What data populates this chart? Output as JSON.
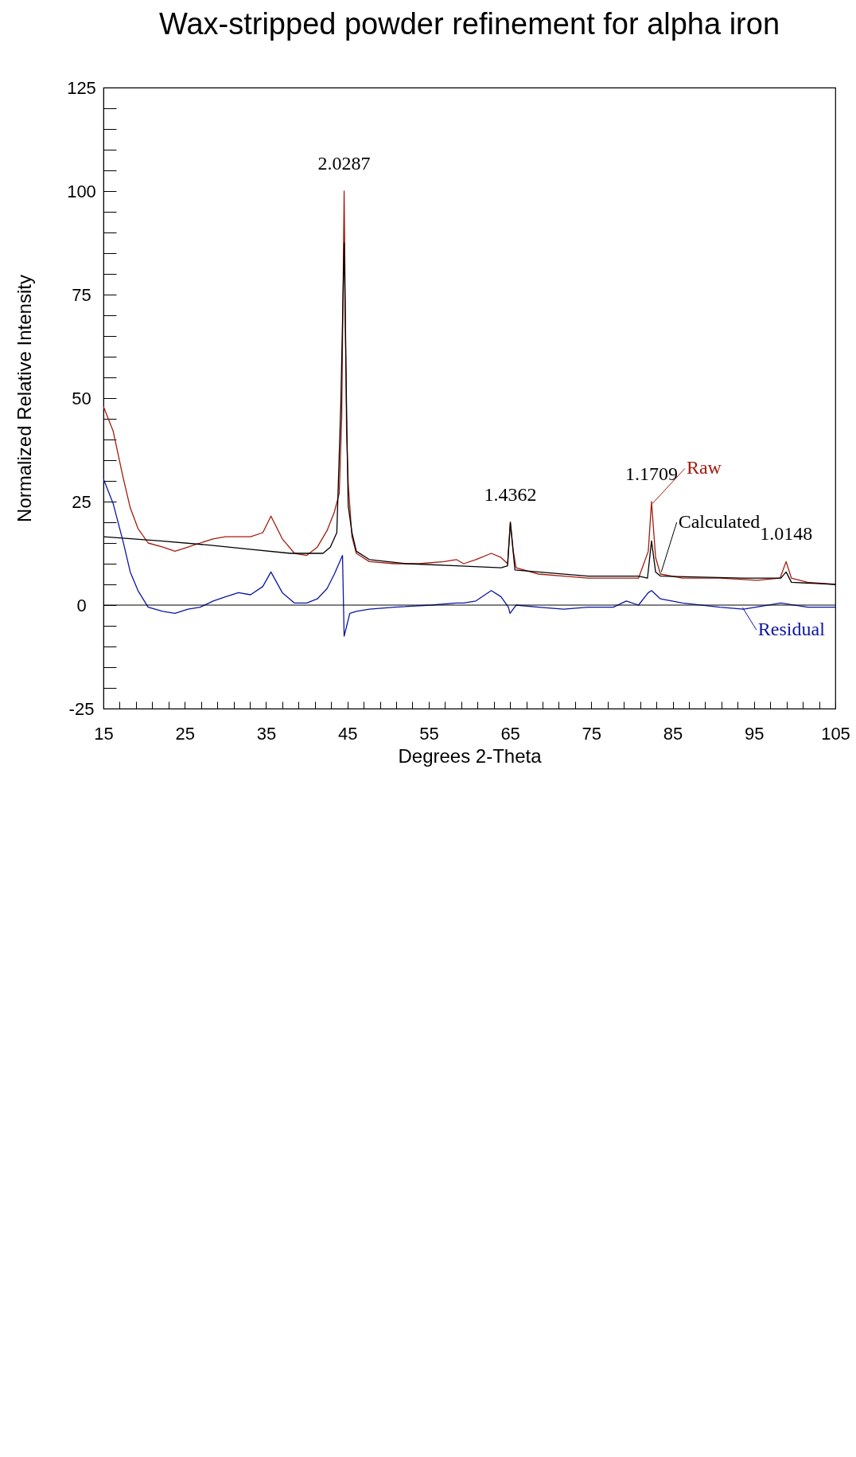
{
  "chart_data": {
    "type": "line",
    "title": "Wax-stripped powder refinement for alpha iron",
    "xlabel": "Degrees 2-Theta",
    "ylabel": "Normalized Relative Intensity",
    "xlim": [
      15,
      105
    ],
    "ylim": [
      -25,
      125
    ],
    "xticks": [
      15,
      {
        "value": 17,
        "label": null
      },
      {
        "value": 19,
        "label": null
      },
      {
        "value": 21,
        "label": null
      },
      {
        "value": 23,
        "label": null
      },
      25,
      {
        "value": 27,
        "label": null
      },
      {
        "value": 29,
        "label": null
      },
      {
        "value": 31,
        "label": null
      },
      {
        "value": 33,
        "label": null
      },
      35,
      {
        "value": 37,
        "label": null
      },
      {
        "value": 39,
        "label": null
      },
      {
        "value": 41,
        "label": null
      },
      {
        "value": 43,
        "label": null
      },
      45,
      {
        "value": 47,
        "label": null
      },
      {
        "value": 49,
        "label": null
      },
      {
        "value": 51,
        "label": null
      },
      {
        "value": 53,
        "label": null
      },
      55,
      {
        "value": 57,
        "label": null
      },
      {
        "value": 59,
        "label": null
      },
      {
        "value": 61,
        "label": null
      },
      {
        "value": 63,
        "label": null
      },
      65,
      {
        "value": 67,
        "label": null
      },
      {
        "value": 69,
        "label": null
      },
      {
        "value": 71,
        "label": null
      },
      {
        "value": 73,
        "label": null
      },
      75,
      {
        "value": 77,
        "label": null
      },
      {
        "value": 79,
        "label": null
      },
      {
        "value": 81,
        "label": null
      },
      {
        "value": 83,
        "label": null
      },
      85,
      {
        "value": 87,
        "label": null
      },
      {
        "value": 89,
        "label": null
      },
      {
        "value": 91,
        "label": null
      },
      {
        "value": 93,
        "label": null
      },
      95,
      {
        "value": 97,
        "label": null
      },
      {
        "value": 99,
        "label": null
      },
      {
        "value": 101,
        "label": null
      },
      {
        "value": 103,
        "label": null
      },
      105
    ],
    "yticks": [
      -25,
      {
        "value": -20,
        "label": null
      },
      {
        "value": -15,
        "label": null
      },
      {
        "value": -10,
        "label": null
      },
      {
        "value": -5,
        "label": null
      },
      0,
      {
        "value": 5,
        "label": null
      },
      {
        "value": 10,
        "label": null
      },
      {
        "value": 15,
        "label": null
      },
      {
        "value": 20,
        "label": null
      },
      25,
      {
        "value": 30,
        "label": null
      },
      {
        "value": 35,
        "label": null
      },
      {
        "value": 40,
        "label": null
      },
      {
        "value": 45,
        "label": null
      },
      50,
      {
        "value": 55,
        "label": null
      },
      {
        "value": 60,
        "label": null
      },
      {
        "value": 65,
        "label": null
      },
      {
        "value": 70,
        "label": null
      },
      75,
      {
        "value": 80,
        "label": null
      },
      {
        "value": 85,
        "label": null
      },
      {
        "value": 90,
        "label": null
      },
      {
        "value": 95,
        "label": null
      },
      100,
      {
        "value": 105,
        "label": null
      },
      {
        "value": 110,
        "label": null
      },
      {
        "value": 115,
        "label": null
      },
      {
        "value": 120,
        "label": null
      },
      125
    ],
    "series": [
      {
        "name": "Raw",
        "color": "#a31c0f",
        "x": [
          15,
          16.2,
          17.4,
          18.3,
          19.25,
          20.5,
          22.3,
          23.8,
          25.4,
          26.9,
          28.5,
          30,
          31.6,
          33.1,
          34.6,
          35.6,
          37,
          38.5,
          40,
          41.3,
          42.5,
          43.4,
          44,
          44.3,
          44.6,
          44.9,
          45.1,
          45.56,
          46.1,
          47.7,
          50.8,
          53.8,
          56.9,
          58.4,
          59.3,
          60.8,
          62.7,
          63.9,
          64.7,
          65.04,
          65.4,
          65.75,
          68.5,
          71.6,
          74.6,
          77.7,
          80.8,
          82,
          82.4,
          82.9,
          83.5,
          86.2,
          90.8,
          95.4,
          98.2,
          98.95,
          99.6,
          101.6,
          105
        ],
        "values": [
          48,
          42,
          31,
          23.5,
          18.5,
          15,
          14,
          13,
          14,
          15,
          16,
          16.5,
          16.5,
          16.5,
          17.5,
          21.5,
          16,
          12.5,
          12,
          14,
          18,
          22.5,
          27,
          45,
          100,
          42,
          29.5,
          16.5,
          12.5,
          10.5,
          10,
          10,
          10.5,
          11,
          10,
          11,
          12.5,
          11.5,
          10,
          20,
          13,
          9,
          7.5,
          7,
          6.5,
          6.5,
          6.5,
          13,
          25,
          11.5,
          7.5,
          6.5,
          6.5,
          6,
          6.5,
          10.5,
          6.5,
          5.5,
          5
        ]
      },
      {
        "name": "Calculated",
        "color": "#000000",
        "x": [
          15,
          22,
          28,
          33,
          38,
          42,
          42.9,
          43.7,
          44.2,
          44.6,
          44.94,
          45.1,
          45.56,
          46.1,
          47.7,
          52.3,
          58.4,
          63.9,
          64.7,
          65.04,
          65.6,
          68.5,
          74.6,
          80.8,
          81.9,
          82.4,
          82.9,
          83.5,
          93.7,
          98.3,
          98.95,
          99.6,
          105
        ],
        "values": [
          16.5,
          15.5,
          14.5,
          13.5,
          12.5,
          12.5,
          14,
          17.5,
          49,
          87.5,
          42,
          24,
          17.5,
          13,
          11,
          10,
          9.5,
          9,
          9.5,
          20,
          8.5,
          8,
          7,
          7,
          6.5,
          15.5,
          8,
          7,
          6.5,
          6.5,
          8,
          5.5,
          5
        ]
      },
      {
        "name": "Residual",
        "color": "#0c15a3",
        "x": [
          15,
          16.2,
          17.4,
          18.3,
          19.25,
          20.5,
          22.3,
          23.8,
          25.4,
          26.9,
          28.5,
          30,
          31.6,
          33.1,
          34.6,
          35.6,
          37,
          38.5,
          40,
          41.3,
          42.5,
          43.4,
          44.4,
          44.6,
          45.3,
          46.1,
          47.7,
          50.8,
          55.3,
          58.4,
          59.3,
          60.8,
          62.7,
          63.9,
          64.8,
          65,
          65.75,
          68.5,
          71.6,
          74.6,
          77.7,
          79.3,
          80.8,
          82,
          82.4,
          83.5,
          86.2,
          90.8,
          93.7,
          98.3,
          101.6,
          105
        ],
        "values": [
          30.5,
          24.5,
          15.5,
          8,
          3.5,
          -0.5,
          -1.5,
          -2,
          -1,
          -0.5,
          1,
          2,
          3,
          2.5,
          4.5,
          8,
          3,
          0.5,
          0.5,
          1.5,
          4,
          7.5,
          12,
          -7.5,
          -2,
          -1.5,
          -1,
          -0.5,
          0,
          0.5,
          0.5,
          1,
          3.5,
          2,
          -0.5,
          -2,
          0,
          -0.5,
          -1,
          -0.5,
          -0.5,
          1,
          0,
          3,
          3.5,
          1.5,
          0.5,
          -0.5,
          -1,
          0.5,
          -0.5,
          -0.5
        ]
      }
    ],
    "legend": "right",
    "ref_lines": [
      {
        "axis": "y",
        "value": 0,
        "color": "#000000"
      }
    ],
    "annotations": [
      {
        "text": "2.0287",
        "x": 44.6,
        "y": 100
      },
      {
        "text": "1.4362",
        "x": 65.04,
        "y": 20
      },
      {
        "text": "1.1709",
        "x": 82.4,
        "y": 25
      },
      {
        "text": "1.0148",
        "x": 98.95,
        "y": 10.5
      }
    ]
  }
}
